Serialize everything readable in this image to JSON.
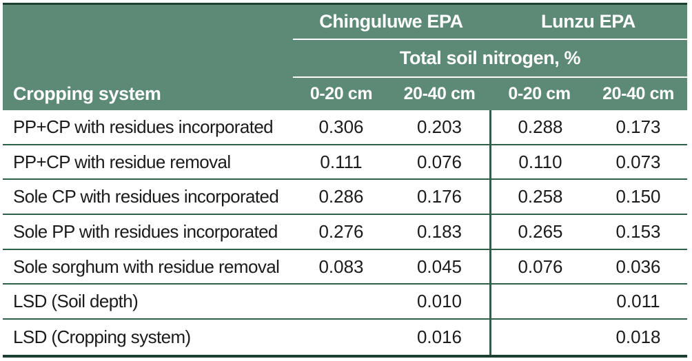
{
  "colors": {
    "header_bg": "#5d8977",
    "separator": "#2e6049",
    "border_dark": "#1c4030",
    "header_text": "#ffffff",
    "body_text": "#1b1b1b"
  },
  "table": {
    "row_header": "Cropping system",
    "site_headers": [
      {
        "label": "Chinguluwe EPA"
      },
      {
        "label": "Lunzu EPA"
      }
    ],
    "measure_header": "Total soil nitrogen, %",
    "depth_headers": [
      "0-20 cm",
      "20-40 cm",
      "0-20 cm",
      "20-40 cm"
    ],
    "rows": [
      {
        "label": "PP+CP with residues incorporated",
        "values": [
          "0.306",
          "0.203",
          "0.288",
          "0.173"
        ]
      },
      {
        "label": "PP+CP with residue removal",
        "values": [
          "0.111",
          "0.076",
          "0.110",
          "0.073"
        ]
      },
      {
        "label": "Sole CP with residues incorporated",
        "values": [
          "0.286",
          "0.176",
          "0.258",
          "0.150"
        ]
      },
      {
        "label": "Sole PP with residues incorporated",
        "values": [
          "0.276",
          "0.183",
          "0.265",
          "0.153"
        ]
      },
      {
        "label": "Sole sorghum with residue removal",
        "values": [
          "0.083",
          "0.045",
          "0.076",
          "0.036"
        ]
      },
      {
        "label": "LSD (Soil depth)",
        "values": [
          "",
          "0.010",
          "",
          "0.011"
        ]
      },
      {
        "label": "LSD (Cropping system)",
        "values": [
          "",
          "0.016",
          "",
          "0.018"
        ]
      }
    ]
  },
  "chart_data": {
    "type": "table",
    "title": "Total soil nitrogen, %",
    "column_groups": [
      {
        "name": "Chinguluwe EPA",
        "columns": [
          "0-20 cm",
          "20-40 cm"
        ]
      },
      {
        "name": "Lunzu EPA",
        "columns": [
          "0-20 cm",
          "20-40 cm"
        ]
      }
    ],
    "row_header": "Cropping system",
    "rows": [
      {
        "cropping_system": "PP+CP with residues incorporated",
        "chinguluwe_0_20": 0.306,
        "chinguluwe_20_40": 0.203,
        "lunzu_0_20": 0.288,
        "lunzu_20_40": 0.173
      },
      {
        "cropping_system": "PP+CP with residue removal",
        "chinguluwe_0_20": 0.111,
        "chinguluwe_20_40": 0.076,
        "lunzu_0_20": 0.11,
        "lunzu_20_40": 0.073
      },
      {
        "cropping_system": "Sole CP with residues incorporated",
        "chinguluwe_0_20": 0.286,
        "chinguluwe_20_40": 0.176,
        "lunzu_0_20": 0.258,
        "lunzu_20_40": 0.15
      },
      {
        "cropping_system": "Sole PP with residues incorporated",
        "chinguluwe_0_20": 0.276,
        "chinguluwe_20_40": 0.183,
        "lunzu_0_20": 0.265,
        "lunzu_20_40": 0.153
      },
      {
        "cropping_system": "Sole sorghum with residue removal",
        "chinguluwe_0_20": 0.083,
        "chinguluwe_20_40": 0.045,
        "lunzu_0_20": 0.076,
        "lunzu_20_40": 0.036
      },
      {
        "cropping_system": "LSD (Soil depth)",
        "chinguluwe_0_20": null,
        "chinguluwe_20_40": 0.01,
        "lunzu_0_20": null,
        "lunzu_20_40": 0.011
      },
      {
        "cropping_system": "LSD (Cropping system)",
        "chinguluwe_0_20": null,
        "chinguluwe_20_40": 0.016,
        "lunzu_0_20": null,
        "lunzu_20_40": 0.018
      }
    ]
  }
}
